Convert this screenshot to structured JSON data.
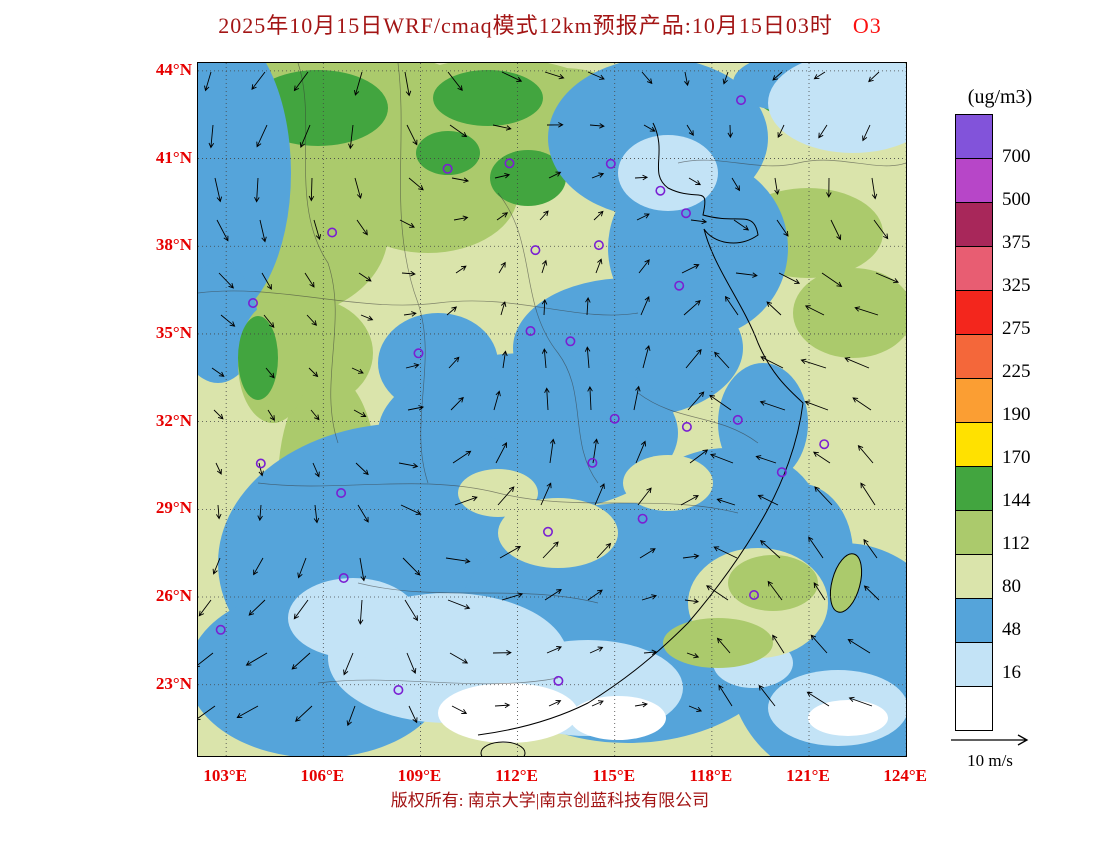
{
  "title": {
    "text": "2025年10月15日WRF/cmaq模式12km预报产品:10月15日03时",
    "species": "O3"
  },
  "map": {
    "lat_labels": [
      "44°N",
      "41°N",
      "38°N",
      "35°N",
      "32°N",
      "29°N",
      "26°N",
      "23°N"
    ],
    "lon_labels": [
      "103°E",
      "106°E",
      "109°E",
      "112°E",
      "115°E",
      "118°E",
      "121°E",
      "124°E"
    ]
  },
  "colorbar": {
    "unit_label": "(ug/m3)",
    "tick_labels": [
      "700",
      "500",
      "375",
      "325",
      "275",
      "225",
      "190",
      "170",
      "144",
      "112",
      "80",
      "48",
      "16"
    ],
    "band_colors_top_down": [
      "#8253da",
      "#b746c8",
      "#a8275a",
      "#e85d72",
      "#f3261d",
      "#f4673a",
      "#fb9e33",
      "#ffe100",
      "#42a53f",
      "#abca6c",
      "#dae4ab",
      "#55a4da",
      "#c3e3f6",
      "#ffffff"
    ]
  },
  "stations": [
    [
      102.83,
      24.88
    ],
    [
      103.83,
      36.06
    ],
    [
      104.07,
      30.57
    ],
    [
      106.27,
      38.47
    ],
    [
      106.55,
      29.56
    ],
    [
      106.63,
      26.65
    ],
    [
      108.32,
      22.82
    ],
    [
      108.94,
      34.34
    ],
    [
      109.84,
      40.65
    ],
    [
      111.75,
      40.84
    ],
    [
      112.4,
      35.1
    ],
    [
      112.55,
      37.87
    ],
    [
      113.26,
      23.13
    ],
    [
      113.63,
      34.75
    ],
    [
      112.94,
      28.23
    ],
    [
      114.51,
      38.04
    ],
    [
      114.88,
      40.82
    ],
    [
      114.31,
      30.59
    ],
    [
      115.0,
      32.1
    ],
    [
      115.86,
      28.68
    ],
    [
      116.41,
      39.9
    ],
    [
      116.99,
      36.65
    ],
    [
      117.2,
      39.13
    ],
    [
      117.23,
      31.82
    ],
    [
      118.8,
      32.06
    ],
    [
      118.9,
      43.0
    ],
    [
      119.3,
      26.07
    ],
    [
      120.16,
      30.27
    ],
    [
      121.47,
      31.23
    ]
  ],
  "wind_legend": {
    "label": "10 m/s"
  },
  "footer": {
    "copyright": "版权所有: 南京大学|南京创蓝科技有限公司"
  },
  "colors": {
    "title": "#a31515",
    "species": "#fb1010",
    "axis_labels": "#e60000",
    "station_marker": "#7a1fd2",
    "footer": "#a31515",
    "map_base": "#dae4ab"
  }
}
